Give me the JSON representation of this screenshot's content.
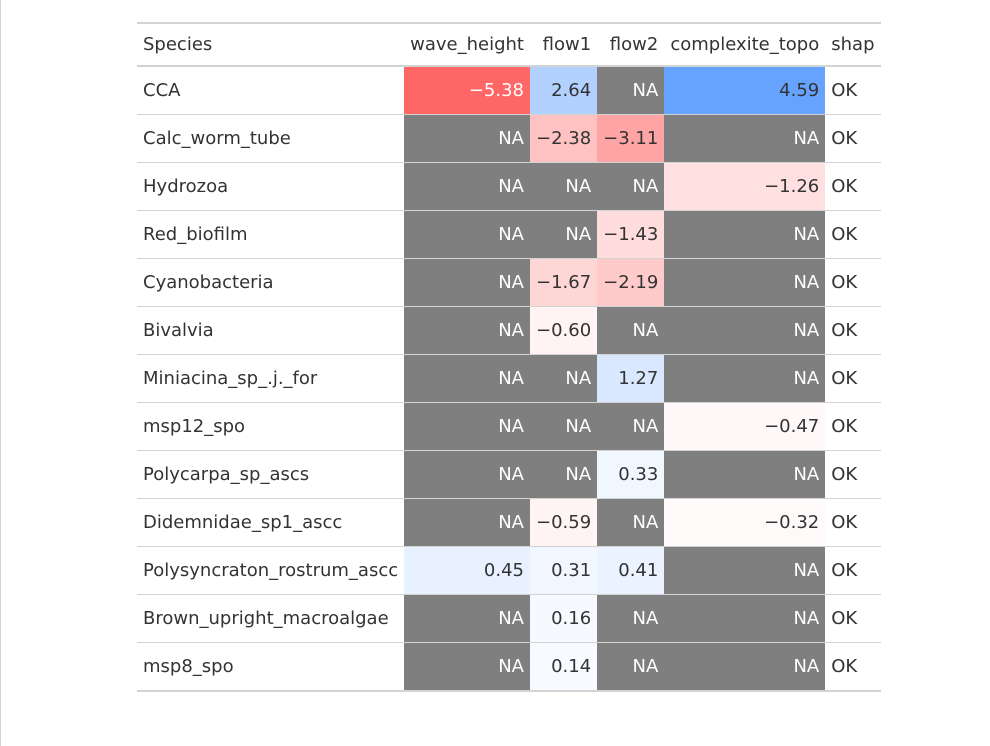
{
  "table": {
    "headers": {
      "species": "Species",
      "wave_height": "wave_height",
      "flow1": "flow1",
      "flow2": "flow2",
      "complexite_topo": "complexite_topo",
      "shap": "shap"
    },
    "columns": [
      "wave_height",
      "flow1",
      "flow2",
      "complexite_topo"
    ],
    "rows": [
      {
        "species": "CCA",
        "values": [
          "−5.38",
          "2.64",
          "NA",
          "4.59"
        ],
        "bg": [
          "#ff6666",
          "#b2d1ff",
          "#7f7f7f",
          "#66a3ff"
        ],
        "fg": [
          "#ffffff",
          "#333333",
          "#ffffff",
          "#333333"
        ],
        "shap": "OK"
      },
      {
        "species": "Calc_worm_tube",
        "values": [
          "NA",
          "−2.38",
          "−3.11",
          "NA"
        ],
        "bg": [
          "#7f7f7f",
          "#ffc2c2",
          "#ffa4a4",
          "#7f7f7f"
        ],
        "fg": [
          "#ffffff",
          "#333333",
          "#333333",
          "#ffffff"
        ],
        "shap": "OK"
      },
      {
        "species": "Hydrozoa",
        "values": [
          "NA",
          "NA",
          "NA",
          "−1.26"
        ],
        "bg": [
          "#7f7f7f",
          "#7f7f7f",
          "#7f7f7f",
          "#ffe0e0"
        ],
        "fg": [
          "#ffffff",
          "#ffffff",
          "#ffffff",
          "#333333"
        ],
        "shap": "OK"
      },
      {
        "species": "Red_biofilm",
        "values": [
          "NA",
          "NA",
          "−1.43",
          "NA"
        ],
        "bg": [
          "#7f7f7f",
          "#7f7f7f",
          "#ffdddd",
          "#7f7f7f"
        ],
        "fg": [
          "#ffffff",
          "#ffffff",
          "#333333",
          "#ffffff"
        ],
        "shap": "OK"
      },
      {
        "species": "Cyanobacteria",
        "values": [
          "NA",
          "−1.67",
          "−2.19",
          "NA"
        ],
        "bg": [
          "#7f7f7f",
          "#ffd6d6",
          "#ffcaca",
          "#7f7f7f"
        ],
        "fg": [
          "#ffffff",
          "#333333",
          "#333333",
          "#ffffff"
        ],
        "shap": "OK"
      },
      {
        "species": "Bivalvia",
        "values": [
          "NA",
          "−0.60",
          "NA",
          "NA"
        ],
        "bg": [
          "#7f7f7f",
          "#fff3f3",
          "#7f7f7f",
          "#7f7f7f"
        ],
        "fg": [
          "#ffffff",
          "#333333",
          "#ffffff",
          "#ffffff"
        ],
        "shap": "OK"
      },
      {
        "species": "Miniacina_sp_.j._for",
        "values": [
          "NA",
          "NA",
          "1.27",
          "NA"
        ],
        "bg": [
          "#7f7f7f",
          "#7f7f7f",
          "#d9e8ff",
          "#7f7f7f"
        ],
        "fg": [
          "#ffffff",
          "#ffffff",
          "#333333",
          "#ffffff"
        ],
        "shap": "OK"
      },
      {
        "species": "msp12_spo",
        "values": [
          "NA",
          "NA",
          "NA",
          "−0.47"
        ],
        "bg": [
          "#7f7f7f",
          "#7f7f7f",
          "#7f7f7f",
          "#fff8f8"
        ],
        "fg": [
          "#ffffff",
          "#ffffff",
          "#ffffff",
          "#333333"
        ],
        "shap": "OK"
      },
      {
        "species": "Polycarpa_sp_ascs",
        "values": [
          "NA",
          "NA",
          "0.33",
          "NA"
        ],
        "bg": [
          "#7f7f7f",
          "#7f7f7f",
          "#f1f7ff",
          "#7f7f7f"
        ],
        "fg": [
          "#ffffff",
          "#ffffff",
          "#333333",
          "#ffffff"
        ],
        "shap": "OK"
      },
      {
        "species": "Didemnidae_sp1_ascc",
        "values": [
          "NA",
          "−0.59",
          "NA",
          "−0.32"
        ],
        "bg": [
          "#7f7f7f",
          "#fff4f4",
          "#7f7f7f",
          "#fffafa"
        ],
        "fg": [
          "#ffffff",
          "#333333",
          "#ffffff",
          "#333333"
        ],
        "shap": "OK"
      },
      {
        "species": "Polysyncraton_rostrum_ascc",
        "values": [
          "0.45",
          "0.31",
          "0.41",
          "NA"
        ],
        "bg": [
          "#e8f1ff",
          "#f2f7ff",
          "#eaf3ff",
          "#7f7f7f"
        ],
        "fg": [
          "#333333",
          "#333333",
          "#333333",
          "#ffffff"
        ],
        "shap": "OK"
      },
      {
        "species": "Brown_upright_macroalgae",
        "values": [
          "NA",
          "0.16",
          "NA",
          "NA"
        ],
        "bg": [
          "#7f7f7f",
          "#f6faff",
          "#7f7f7f",
          "#7f7f7f"
        ],
        "fg": [
          "#ffffff",
          "#333333",
          "#ffffff",
          "#ffffff"
        ],
        "shap": "OK"
      },
      {
        "species": "msp8_spo",
        "values": [
          "NA",
          "0.14",
          "NA",
          "NA"
        ],
        "bg": [
          "#7f7f7f",
          "#f7faff",
          "#7f7f7f",
          "#7f7f7f"
        ],
        "fg": [
          "#ffffff",
          "#333333",
          "#ffffff",
          "#ffffff"
        ],
        "shap": "OK"
      }
    ]
  }
}
